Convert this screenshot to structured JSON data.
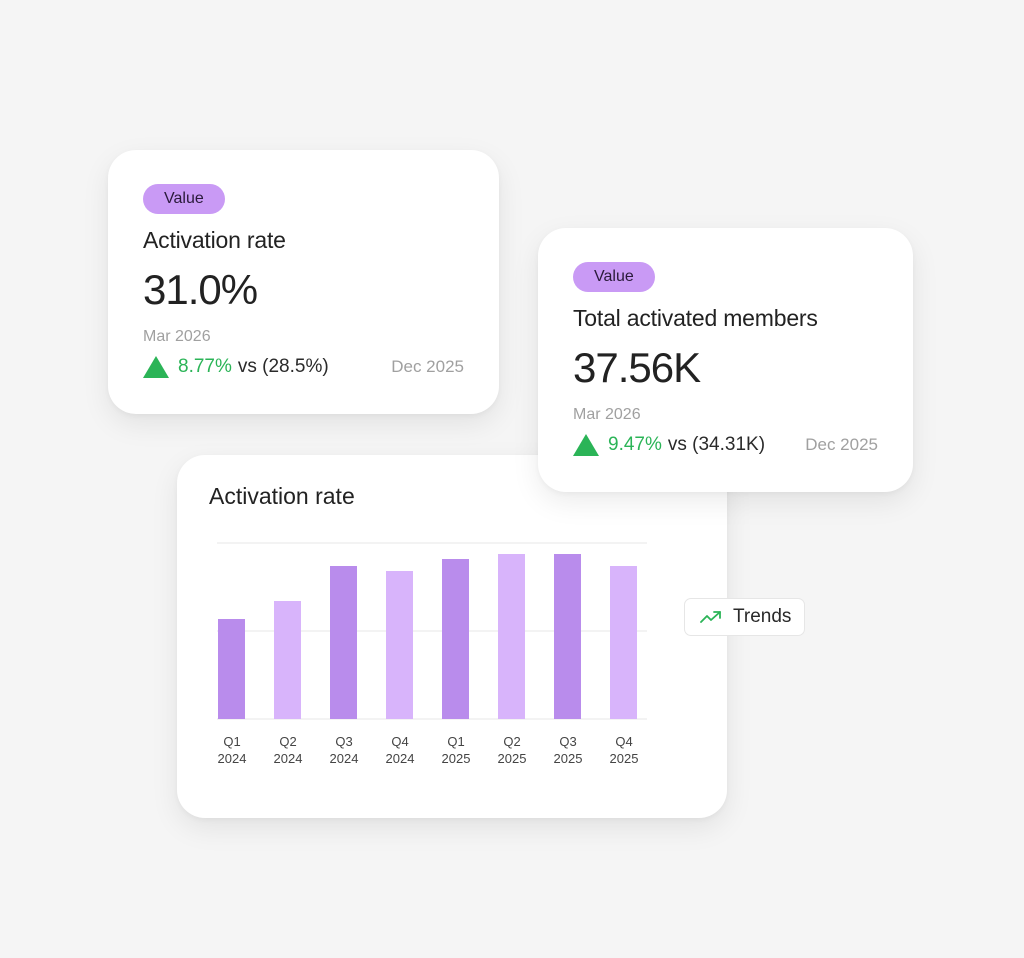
{
  "cards": [
    {
      "badge": "Value",
      "title": "Activation rate",
      "value": "31.0%",
      "period": "Mar 2026",
      "change_pct": "8.77%",
      "change_direction": "up",
      "comparison": "vs (28.5%)",
      "comparison_date": "Dec 2025"
    },
    {
      "badge": "Value",
      "title": "Total activated members",
      "value": "37.56K",
      "period": "Mar 2026",
      "change_pct": "9.47%",
      "change_direction": "up",
      "comparison": "vs (34.31K)",
      "comparison_date": "Dec 2025"
    }
  ],
  "chart_card": {
    "title": "Activation rate"
  },
  "trends_button": {
    "label": "Trends",
    "icon": "trending-up-icon"
  },
  "colors": {
    "badge": "#c99af5",
    "positive": "#2bb457",
    "bar_dark": "#b98cec",
    "bar_light": "#d8b4fb"
  },
  "chart_data": {
    "type": "bar",
    "title": "Activation rate",
    "categories": [
      "Q1 2024",
      "Q2 2024",
      "Q3 2024",
      "Q4 2024",
      "Q1 2025",
      "Q2 2025",
      "Q3 2025",
      "Q4 2025"
    ],
    "x_labels": [
      {
        "q": "Q1",
        "y": "2024"
      },
      {
        "q": "Q2",
        "y": "2024"
      },
      {
        "q": "Q3",
        "y": "2024"
      },
      {
        "q": "Q4",
        "y": "2024"
      },
      {
        "q": "Q1",
        "y": "2025"
      },
      {
        "q": "Q2",
        "y": "2025"
      },
      {
        "q": "Q3",
        "y": "2025"
      },
      {
        "q": "Q4",
        "y": "2025"
      }
    ],
    "values": [
      57,
      67,
      87,
      84,
      91,
      94,
      94,
      87
    ],
    "value_note": "relative bar heights as % of top gridline (no y-axis labels shown)",
    "xlabel": "",
    "ylabel": "",
    "ylim": [
      0,
      100
    ],
    "grid": true,
    "gridlines": [
      0,
      50,
      100
    ],
    "legend": null
  }
}
